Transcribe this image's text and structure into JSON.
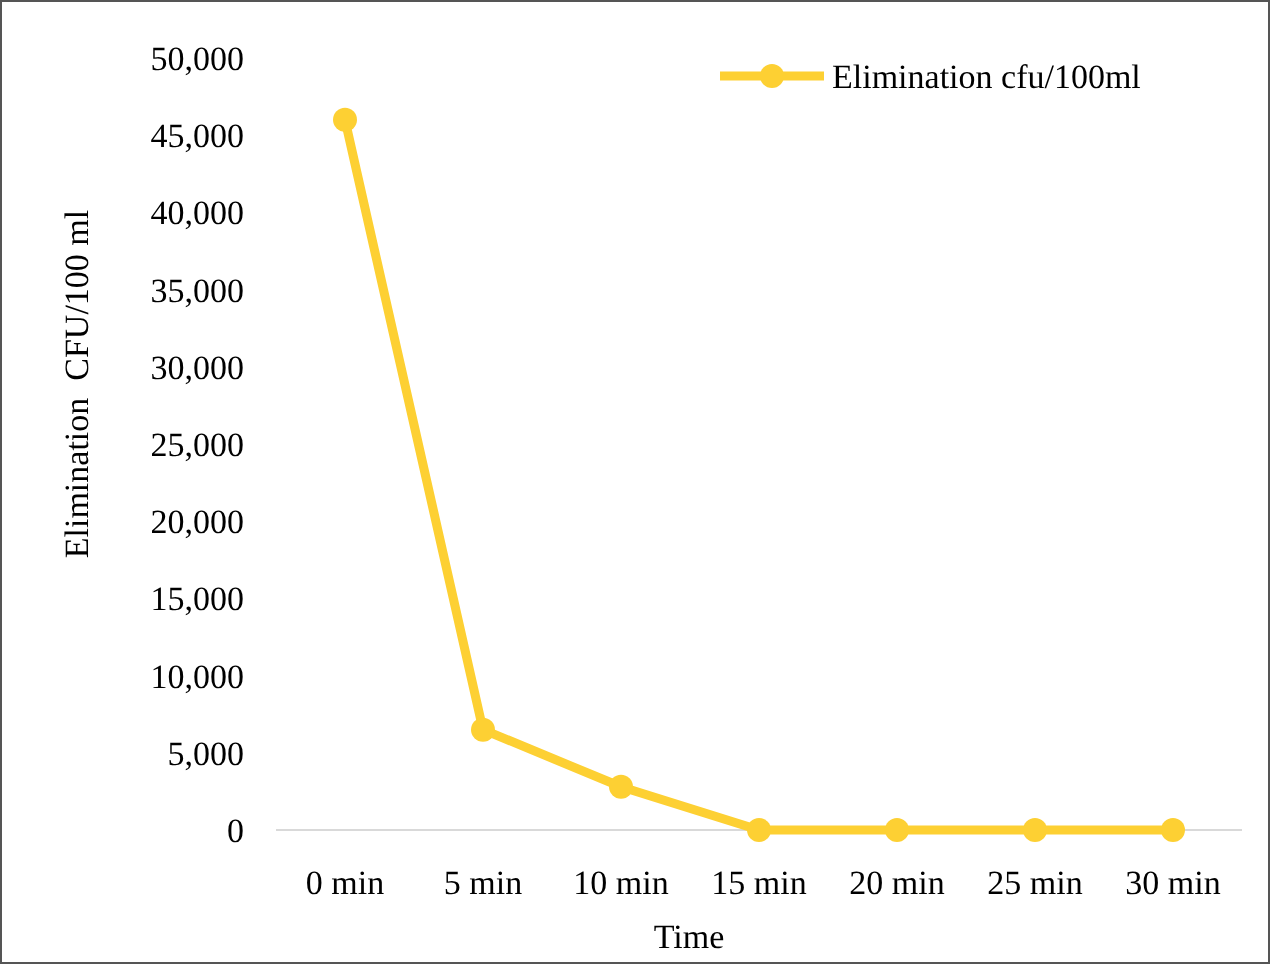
{
  "chart_data": {
    "type": "line",
    "xlabel": "Time",
    "ylabel": "Elimination  CFU/100 ml",
    "categories": [
      "0 min",
      "5 min",
      "10 min",
      "15 min",
      "20 min",
      "25 min",
      "30 min"
    ],
    "series": [
      {
        "name": "Elimination cfu/100ml",
        "color": "#fdd033",
        "values": [
          46000,
          6500,
          2800,
          0,
          0,
          0,
          0
        ]
      }
    ],
    "ylim": [
      0,
      50000
    ],
    "yticks": [
      {
        "value": 0,
        "label": "0"
      },
      {
        "value": 5000,
        "label": "5,000"
      },
      {
        "value": 10000,
        "label": "10,000"
      },
      {
        "value": 15000,
        "label": "15,000"
      },
      {
        "value": 20000,
        "label": "20,000"
      },
      {
        "value": 25000,
        "label": "25,000"
      },
      {
        "value": 30000,
        "label": "30,000"
      },
      {
        "value": 35000,
        "label": "35,000"
      },
      {
        "value": 40000,
        "label": "40,000"
      },
      {
        "value": 45000,
        "label": "45,000"
      },
      {
        "value": 50000,
        "label": "50,000"
      }
    ],
    "grid": false,
    "legend": "top right",
    "marker": "circle",
    "line_style": "solid"
  }
}
